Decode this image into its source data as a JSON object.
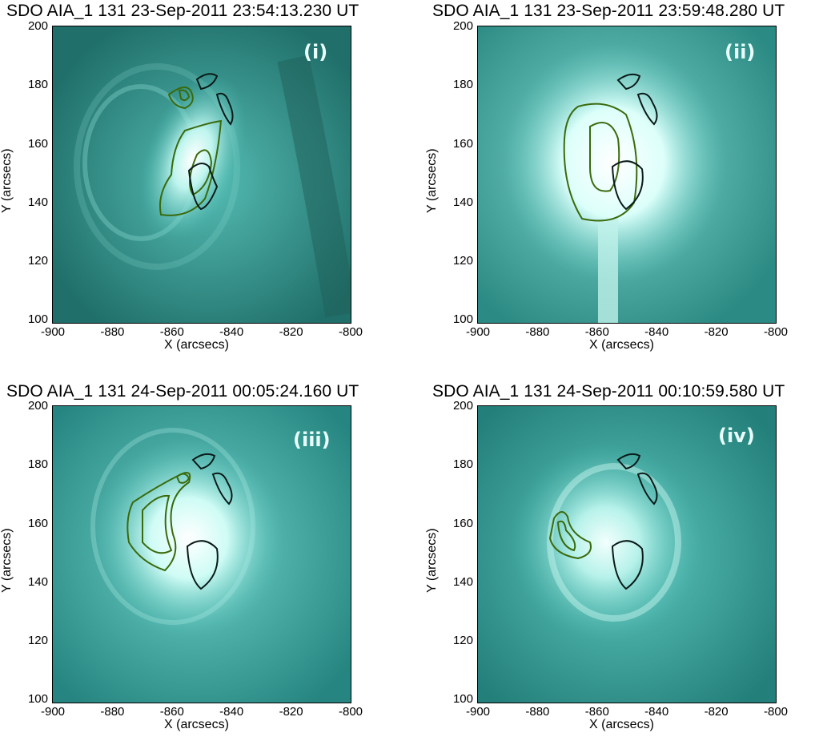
{
  "panels": [
    {
      "title": "SDO AIA_1 131 23-Sep-2011 23:54:13.230 UT",
      "label": "(i)"
    },
    {
      "title": "SDO AIA_1 131 23-Sep-2011 23:59:48.280 UT",
      "label": "(ii)"
    },
    {
      "title": "SDO AIA_1 131 24-Sep-2011 00:05:24.160 UT",
      "label": "(iii)"
    },
    {
      "title": "SDO AIA_1 131 24-Sep-2011 00:10:59.580 UT",
      "label": "(iv)"
    }
  ],
  "axes": {
    "xlabel": "X (arcsecs)",
    "ylabel": "Y (arcsecs)",
    "xticks": [
      "-900",
      "-880",
      "-860",
      "-840",
      "-820",
      "-800"
    ],
    "yticks": [
      "200",
      "180",
      "160",
      "140",
      "120",
      "100"
    ],
    "xrange": [
      -900,
      -800
    ],
    "yrange": [
      99,
      200
    ]
  },
  "colors": {
    "background": "#2a8f88",
    "bright": "#eafffb",
    "dark_contour": "#0a1a18",
    "green_contour": "#3a6a0c"
  }
}
